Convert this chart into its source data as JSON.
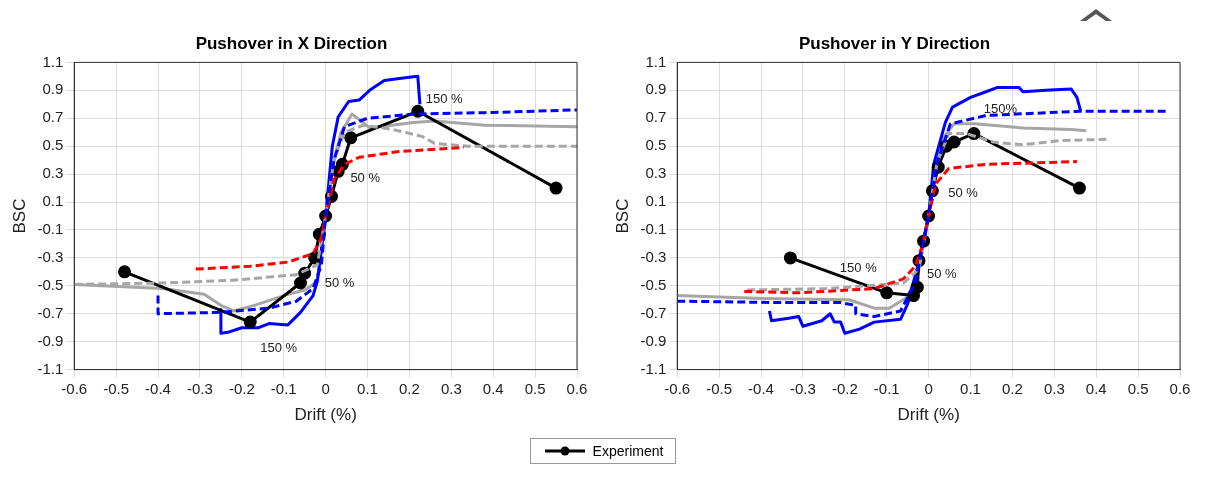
{
  "chart_data": [
    {
      "type": "line",
      "title": "Pushover in X Direction",
      "xlabel": "Drift (%)",
      "ylabel": "BSC",
      "xlim": [
        -0.6,
        0.6
      ],
      "xticks": [
        -0.6,
        -0.5,
        -0.4,
        -0.3,
        -0.2,
        -0.1,
        0,
        0.1,
        0.2,
        0.3,
        0.4,
        0.5,
        0.6
      ],
      "ylim": [
        -1.1,
        1.1
      ],
      "yticks": [
        -1.1,
        -0.9,
        -0.7,
        -0.5,
        -0.3,
        -0.1,
        0.1,
        0.3,
        0.5,
        0.7,
        0.9,
        1.1
      ],
      "grid": true,
      "legend": "bottom",
      "annotations": [
        {
          "text": "150 %",
          "x": 0.22,
          "y": 0.75
        },
        {
          "text": "50 %",
          "x": 0.04,
          "y": 0.37
        },
        {
          "text": "50 %",
          "x": -0.026,
          "y": -0.3
        },
        {
          "text": "150 %",
          "x": -0.18,
          "y": -0.76
        }
      ],
      "series": [
        {
          "color": "#0000ff",
          "line_style": "dashed",
          "marker": "none",
          "x": [
            -0.4,
            -0.4,
            -0.25,
            -0.135,
            -0.07,
            -0.03,
            -0.01,
            0,
            0.02,
            0.045,
            0.1,
            0.21,
            0.38,
            0.6
          ],
          "values": [
            -0.57,
            -0.7,
            -0.69,
            -0.66,
            -0.61,
            -0.52,
            -0.35,
            0,
            0.4,
            0.64,
            0.7,
            0.73,
            0.74,
            0.76
          ]
        },
        {
          "color": "#ff0000",
          "line_style": "dashed",
          "marker": "none",
          "x": [
            -0.31,
            -0.18,
            -0.09,
            -0.03,
            -0.01,
            0,
            0.02,
            0.045,
            0.08,
            0.17,
            0.33
          ],
          "values": [
            -0.38,
            -0.36,
            -0.33,
            -0.27,
            -0.16,
            0,
            0.26,
            0.37,
            0.42,
            0.46,
            0.49
          ]
        },
        {
          "color": "#a6a6a6",
          "line_style": "dashed",
          "marker": "none",
          "x": [
            -0.6,
            -0.39,
            -0.22,
            -0.07,
            -0.02,
            0,
            0.02,
            0.045,
            0.09,
            0.16,
            0.23,
            0.26,
            0.34,
            0.6
          ],
          "values": [
            -0.49,
            -0.48,
            -0.46,
            -0.42,
            -0.35,
            0,
            0.4,
            0.6,
            0.65,
            0.62,
            0.57,
            0.52,
            0.5,
            0.5
          ]
        },
        {
          "name": "Experiment",
          "color": "#000000",
          "line_style": "solid",
          "marker": "circle",
          "x": [
            -0.48,
            -0.18,
            -0.06,
            -0.05,
            -0.026,
            -0.015,
            0,
            0.014,
            0.03,
            0.04,
            0.06,
            0.22,
            0.55
          ],
          "values": [
            -0.4,
            -0.76,
            -0.48,
            -0.41,
            -0.3,
            -0.13,
            0,
            0.14,
            0.32,
            0.37,
            0.56,
            0.75,
            0.2
          ]
        },
        {
          "color": "#0000ff",
          "line_style": "solid",
          "marker": "none",
          "x": [
            -0.25,
            -0.25,
            -0.23,
            -0.2,
            -0.16,
            -0.135,
            -0.09,
            -0.06,
            -0.03,
            -0.02,
            -0.01,
            0,
            0.016,
            0.03,
            0.055,
            0.08,
            0.105,
            0.14,
            0.19,
            0.22,
            0.225
          ],
          "values": [
            -0.67,
            -0.84,
            -0.83,
            -0.8,
            -0.8,
            -0.77,
            -0.78,
            -0.69,
            -0.57,
            -0.47,
            -0.24,
            0,
            0.5,
            0.71,
            0.82,
            0.83,
            0.9,
            0.97,
            0.99,
            1.0,
            0.8
          ]
        },
        {
          "color": "#a6a6a6",
          "line_style": "solid",
          "marker": "none",
          "x": [
            -0.6,
            -0.39,
            -0.29,
            -0.25,
            -0.22,
            -0.17,
            -0.1,
            -0.05,
            -0.02,
            -0.01,
            0,
            0.02,
            0.037,
            0.063,
            0.106,
            0.21,
            0.26,
            0.38,
            0.6
          ],
          "values": [
            -0.49,
            -0.52,
            -0.56,
            -0.64,
            -0.68,
            -0.64,
            -0.57,
            -0.53,
            -0.47,
            -0.24,
            0,
            0.4,
            0.6,
            0.73,
            0.63,
            0.67,
            0.68,
            0.65,
            0.64
          ]
        }
      ]
    },
    {
      "type": "line",
      "title": "Pushover in Y Direction",
      "xlabel": "Drift (%)",
      "ylabel": "BSC",
      "xlim": [
        -0.6,
        0.6
      ],
      "xticks": [
        -0.6,
        -0.5,
        -0.4,
        -0.3,
        -0.2,
        -0.1,
        0,
        0.1,
        0.2,
        0.3,
        0.4,
        0.5,
        0.6
      ],
      "ylim": [
        -1.1,
        1.1
      ],
      "yticks": [
        -1.1,
        -0.9,
        -0.7,
        -0.5,
        -0.3,
        -0.1,
        0.1,
        0.3,
        0.5,
        0.7,
        0.9,
        1.1
      ],
      "grid": true,
      "legend": "bottom",
      "annotations": [
        {
          "text": "150%",
          "x": 0.108,
          "y": 0.59
        },
        {
          "text": "50 %",
          "x": 0.023,
          "y": 0.35
        },
        {
          "text": "50 %",
          "x": -0.023,
          "y": -0.32
        },
        {
          "text": "150 %",
          "x": -0.1,
          "y": -0.55
        }
      ],
      "series": [
        {
          "color": "#0000ff",
          "line_style": "dashed",
          "marker": "none",
          "x": [
            -0.6,
            -0.36,
            -0.21,
            -0.174,
            -0.174,
            -0.13,
            -0.067,
            -0.032,
            0,
            0.02,
            0.052,
            0.137,
            0.36,
            0.57
          ],
          "values": [
            -0.61,
            -0.62,
            -0.62,
            -0.64,
            -0.7,
            -0.72,
            -0.68,
            -0.48,
            0,
            0.38,
            0.66,
            0.72,
            0.75,
            0.75
          ]
        },
        {
          "color": "#ff0000",
          "line_style": "dashed",
          "marker": "none",
          "x": [
            -0.44,
            -0.31,
            -0.13,
            -0.06,
            -0.032,
            -0.014,
            0,
            0.017,
            0.048,
            0.137,
            0.354
          ],
          "values": [
            -0.54,
            -0.55,
            -0.52,
            -0.45,
            -0.36,
            -0.21,
            0,
            0.23,
            0.34,
            0.37,
            0.39
          ]
        },
        {
          "color": "#a6a6a6",
          "line_style": "dashed",
          "marker": "none",
          "x": [
            -0.433,
            -0.245,
            -0.147,
            -0.06,
            -0.023,
            0,
            0.02,
            0.048,
            0.09,
            0.154,
            0.225,
            0.314,
            0.434
          ],
          "values": [
            -0.53,
            -0.52,
            -0.5,
            -0.48,
            -0.38,
            0,
            0.38,
            0.59,
            0.59,
            0.53,
            0.51,
            0.54,
            0.55
          ]
        },
        {
          "name": "Experiment",
          "color": "#000000",
          "line_style": "solid",
          "marker": "circle",
          "x": [
            -0.33,
            -0.1,
            -0.036,
            -0.027,
            -0.023,
            -0.012,
            0,
            0.009,
            0.023,
            0.042,
            0.061,
            0.108,
            0.36
          ],
          "values": [
            -0.3,
            -0.55,
            -0.57,
            -0.51,
            -0.32,
            -0.18,
            0,
            0.18,
            0.35,
            0.5,
            0.53,
            0.59,
            0.2
          ]
        },
        {
          "color": "#0000ff",
          "line_style": "solid",
          "marker": "none",
          "x": [
            -0.38,
            -0.375,
            -0.33,
            -0.31,
            -0.3,
            -0.255,
            -0.235,
            -0.225,
            -0.21,
            -0.2,
            -0.165,
            -0.13,
            -0.067,
            -0.05,
            -0.028,
            0,
            0.012,
            0.04,
            0.057,
            0.1,
            0.137,
            0.163,
            0.216,
            0.225,
            0.28,
            0.34,
            0.354,
            0.363
          ],
          "values": [
            -0.68,
            -0.75,
            -0.73,
            -0.72,
            -0.79,
            -0.75,
            -0.7,
            -0.76,
            -0.76,
            -0.84,
            -0.81,
            -0.76,
            -0.74,
            -0.63,
            -0.38,
            0,
            0.37,
            0.67,
            0.78,
            0.85,
            0.89,
            0.92,
            0.92,
            0.89,
            0.9,
            0.91,
            0.85,
            0.75
          ]
        },
        {
          "color": "#a6a6a6",
          "line_style": "solid",
          "marker": "none",
          "x": [
            -0.6,
            -0.396,
            -0.19,
            -0.13,
            -0.094,
            -0.05,
            -0.023,
            0,
            0.017,
            0.03,
            0.061,
            0.11,
            0.225,
            0.34,
            0.376
          ],
          "values": [
            -0.57,
            -0.59,
            -0.6,
            -0.66,
            -0.66,
            -0.58,
            -0.38,
            0,
            0.38,
            0.54,
            0.66,
            0.66,
            0.63,
            0.62,
            0.61
          ]
        }
      ]
    }
  ]
}
